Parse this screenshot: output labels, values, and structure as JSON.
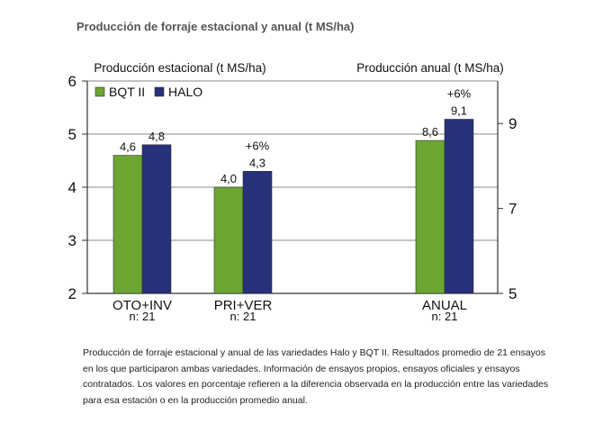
{
  "heading": "Producción de forraje estacional y anual (t MS/ha)",
  "caption": "Producción de forraje estacional y anual de las variedades Halo y BQT II. Resultados promedio de 21 ensayos en los que participaron ambas variedades. Información de ensayos propios, ensayos oficiales y ensayos contratados. Los valores en porcentaje refieren a la diferencia observada en la producción entre las variedades para esa estación o en la producción promedio anual.",
  "colors": {
    "bqt": "#6da532",
    "halo": "#27307a",
    "axis": "#333333"
  },
  "chart_data": {
    "type": "bar",
    "left_axis": {
      "label": "Producción estacional (t MS/ha)",
      "ylim": [
        2,
        6
      ],
      "ticks": [
        "2",
        "3",
        "4",
        "5",
        "6"
      ]
    },
    "right_axis": {
      "label": "Producción anual (t MS/ha)",
      "ylim": [
        5,
        10
      ],
      "ticks": [
        "5",
        "7",
        "9"
      ]
    },
    "categories": [
      "OTO+INV",
      "PRI+VER",
      "ANUAL"
    ],
    "n_labels": [
      "n: 21",
      "n: 21",
      "n: 21"
    ],
    "series": [
      {
        "name": "BQT II",
        "values": [
          4.6,
          4.0,
          8.6
        ],
        "labels": [
          "4,6",
          "4,0",
          "8,6"
        ]
      },
      {
        "name": "HALO",
        "values": [
          4.8,
          4.3,
          9.1
        ],
        "labels": [
          "4,8",
          "4,3",
          "9,1"
        ]
      }
    ],
    "annotations": [
      "",
      "+6%",
      "+6%"
    ],
    "legend_position": "top-left",
    "grid": true
  }
}
